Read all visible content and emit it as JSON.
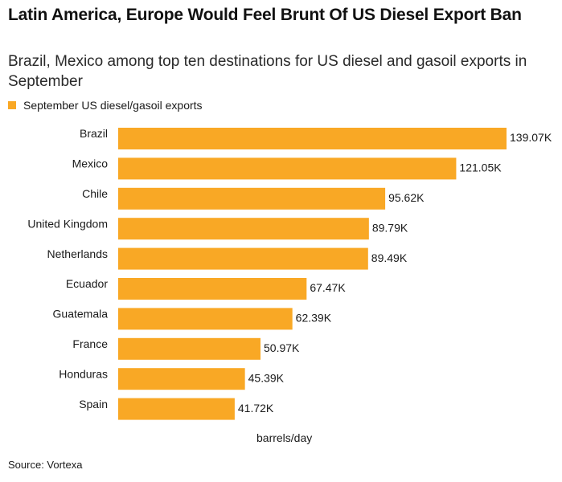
{
  "colors": {
    "bar": "#F9A825",
    "text": "#1a1a1a",
    "background": "#ffffff"
  },
  "chart_data": {
    "type": "bar",
    "orientation": "horizontal",
    "title": "Latin America, Europe Would Feel Brunt Of US Diesel Export Ban",
    "subtitle": "Brazil, Mexico among top ten destinations for US diesel and gasoil exports in September",
    "legend": [
      "September US diesel/gasoil exports"
    ],
    "legend_position": "top-left",
    "xlabel": "barrels/day",
    "ylabel": "",
    "categories": [
      "Brazil",
      "Mexico",
      "Chile",
      "United Kingdom",
      "Netherlands",
      "Ecuador",
      "Guatemala",
      "France",
      "Honduras",
      "Spain"
    ],
    "series": [
      {
        "name": "September US diesel/gasoil exports",
        "values": [
          139070,
          121050,
          95620,
          89790,
          89490,
          67470,
          62390,
          50970,
          45390,
          41720
        ],
        "value_labels": [
          "139.07K",
          "121.05K",
          "95.62K",
          "89.79K",
          "89.49K",
          "67.47K",
          "62.39K",
          "50.97K",
          "45.39K",
          "41.72K"
        ]
      }
    ],
    "xlim": [
      0,
      139070
    ],
    "grid": false,
    "source": "Source: Vortexa"
  }
}
